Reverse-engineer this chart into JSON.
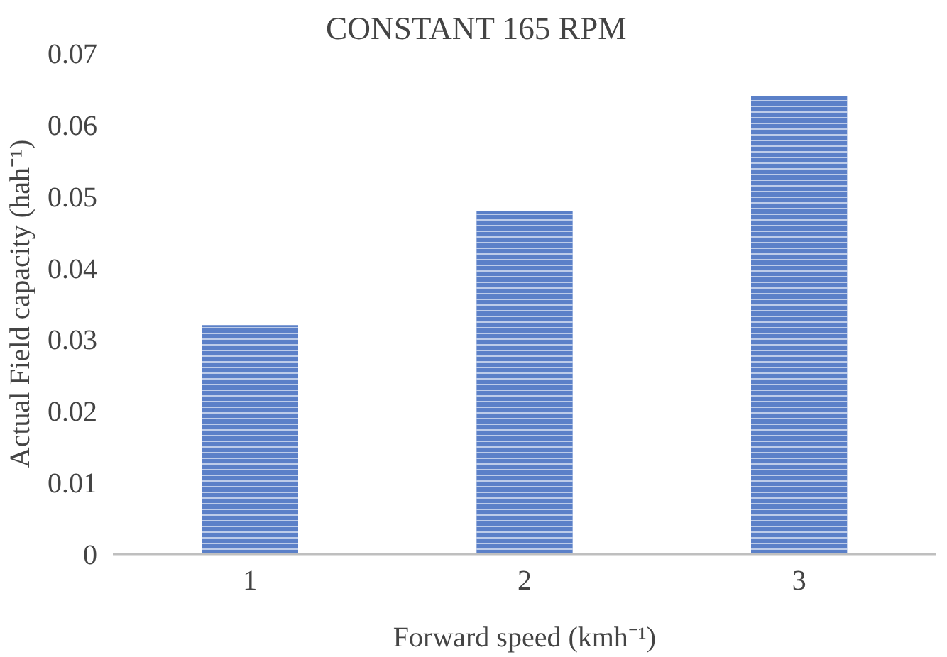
{
  "chart_data": {
    "type": "bar",
    "title": "CONSTANT 165 RPM",
    "xlabel": "Forward speed (kmh⁻¹)",
    "ylabel": "Actual Field capacity (hah⁻¹)",
    "categories": [
      "1",
      "2",
      "3"
    ],
    "values": [
      0.032,
      0.048,
      0.064
    ],
    "color": "#5b80c8",
    "ylim": [
      0,
      0.07
    ],
    "yticks": [
      0,
      0.01,
      0.02,
      0.03,
      0.04,
      0.05,
      0.06,
      0.07
    ],
    "grid": false
  }
}
